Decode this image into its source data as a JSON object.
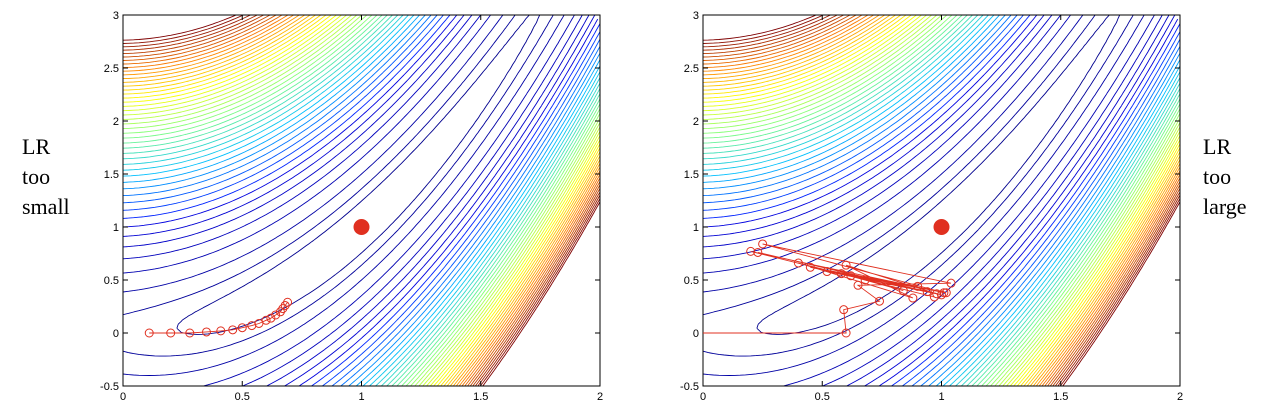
{
  "labels": {
    "left": [
      "LR",
      "too",
      "small"
    ],
    "right": [
      "LR",
      "too",
      "large"
    ]
  },
  "chart_data": [
    {
      "type": "scatter",
      "title": "",
      "xlabel": "",
      "ylabel": "",
      "xlim": [
        0,
        2
      ],
      "ylim": [
        -0.5,
        3
      ],
      "x_ticks": [
        0,
        0.5,
        1,
        1.5,
        2
      ],
      "y_ticks": [
        -0.5,
        0,
        0.5,
        1,
        1.5,
        2,
        2.5,
        3
      ],
      "x_tick_labels": [
        "0",
        "0.5",
        "1",
        "1.5",
        "2"
      ],
      "y_tick_labels": [
        "-0.5",
        "0",
        "0.5",
        "1",
        "1.5",
        "2",
        "2.5",
        "3"
      ],
      "grid": false,
      "minimum": {
        "x": 1,
        "y": 1,
        "color": "#e03020"
      },
      "path_color": "#e03020",
      "path": [
        [
          0.11,
          0.0
        ],
        [
          0.2,
          0.0
        ],
        [
          0.28,
          0.0
        ],
        [
          0.35,
          0.01
        ],
        [
          0.41,
          0.02
        ],
        [
          0.46,
          0.03
        ],
        [
          0.5,
          0.05
        ],
        [
          0.54,
          0.07
        ],
        [
          0.57,
          0.09
        ],
        [
          0.6,
          0.12
        ],
        [
          0.62,
          0.14
        ],
        [
          0.64,
          0.17
        ],
        [
          0.66,
          0.2
        ],
        [
          0.67,
          0.23
        ],
        [
          0.68,
          0.26
        ],
        [
          0.69,
          0.29
        ]
      ],
      "contour_colormap": [
        "#00007f",
        "#0000ff",
        "#00bfff",
        "#7fff7f",
        "#ffff00",
        "#ff7f00",
        "#7f0000"
      ]
    },
    {
      "type": "scatter",
      "title": "",
      "xlabel": "",
      "ylabel": "",
      "xlim": [
        0,
        2
      ],
      "ylim": [
        -0.5,
        3
      ],
      "x_ticks": [
        0,
        0.5,
        1,
        1.5,
        2
      ],
      "y_ticks": [
        -0.5,
        0,
        0.5,
        1,
        1.5,
        2,
        2.5,
        3
      ],
      "x_tick_labels": [
        "0",
        "0.5",
        "1",
        "1.5",
        "2"
      ],
      "y_tick_labels": [
        "-0.5",
        "0",
        "0.5",
        "1",
        "1.5",
        "2",
        "2.5",
        "3"
      ],
      "grid": false,
      "minimum": {
        "x": 1,
        "y": 1,
        "color": "#e03020"
      },
      "path_color": "#e03020",
      "path": [
        [
          0.0,
          0.0
        ],
        [
          0.6,
          0.0
        ],
        [
          0.59,
          0.22
        ],
        [
          0.74,
          0.3
        ],
        [
          0.65,
          0.45
        ],
        [
          1.04,
          0.47
        ],
        [
          0.25,
          0.84
        ],
        [
          1.01,
          0.38
        ],
        [
          0.2,
          0.77
        ],
        [
          0.97,
          0.34
        ],
        [
          0.4,
          0.66
        ],
        [
          0.88,
          0.33
        ],
        [
          0.6,
          0.64
        ],
        [
          0.98,
          0.37
        ],
        [
          0.23,
          0.76
        ],
        [
          1.0,
          0.36
        ],
        [
          0.52,
          0.58
        ],
        [
          0.94,
          0.39
        ],
        [
          0.45,
          0.62
        ],
        [
          0.9,
          0.44
        ],
        [
          0.62,
          0.54
        ],
        [
          1.02,
          0.38
        ],
        [
          0.58,
          0.56
        ],
        [
          0.84,
          0.4
        ],
        [
          0.68,
          0.5
        ]
      ],
      "contour_colormap": [
        "#00007f",
        "#0000ff",
        "#00bfff",
        "#7fff7f",
        "#ffff00",
        "#ff7f00",
        "#7f0000"
      ]
    }
  ]
}
